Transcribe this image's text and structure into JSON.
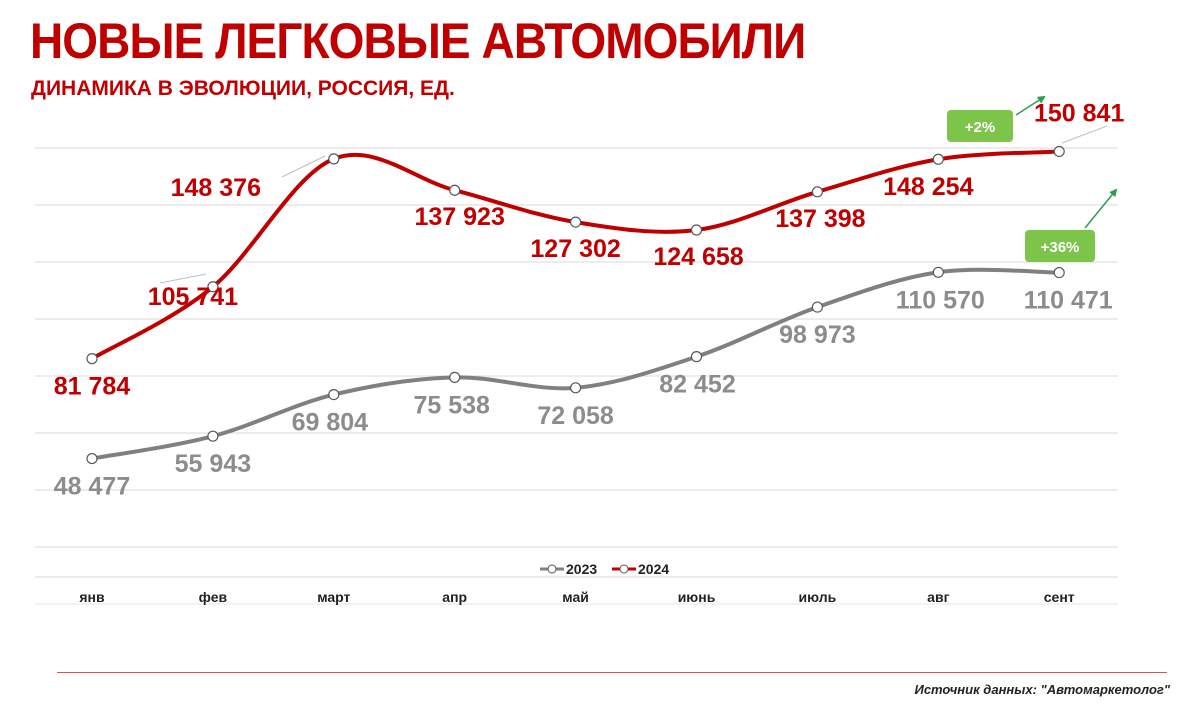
{
  "title": "НОВЫЕ ЛЕГКОВЫЕ АВТОМОБИЛИ",
  "subtitle": "ДИНАМИКА В ЭВОЛЮЦИИ, РОССИЯ, ЕД.",
  "source": "Источник данных: \"Автомаркетолог\"",
  "colors": {
    "brand": "#c00000",
    "series2023": "#808080",
    "series2024": "#c00000",
    "badge": "#7dc44b",
    "arrow": "#2e9e4f"
  },
  "chart_data": {
    "type": "line",
    "categories": [
      "янв",
      "фев",
      "март",
      "апр",
      "май",
      "июнь",
      "июль",
      "авг",
      "сент"
    ],
    "series": [
      {
        "name": "2023",
        "values": [
          48477,
          55943,
          69804,
          75538,
          72058,
          82452,
          98973,
          110570,
          110471
        ],
        "labels": [
          "48 477",
          "55 943",
          "69 804",
          "75 538",
          "72 058",
          "82 452",
          "98 973",
          "110 570",
          "110 471"
        ]
      },
      {
        "name": "2024",
        "values": [
          81784,
          105741,
          148376,
          137923,
          127302,
          124658,
          137398,
          148254,
          150841
        ],
        "labels": [
          "81 784",
          "105 741",
          "148 376",
          "137 923",
          "127 302",
          "124 658",
          "137 398",
          "148 254",
          "150 841"
        ]
      }
    ],
    "annotations": [
      {
        "text": "+2%",
        "series": "2024"
      },
      {
        "text": "+36%",
        "series": "2023"
      }
    ],
    "legend": "bottom-center",
    "grid": true,
    "ylim": [
      0,
      160000
    ]
  }
}
